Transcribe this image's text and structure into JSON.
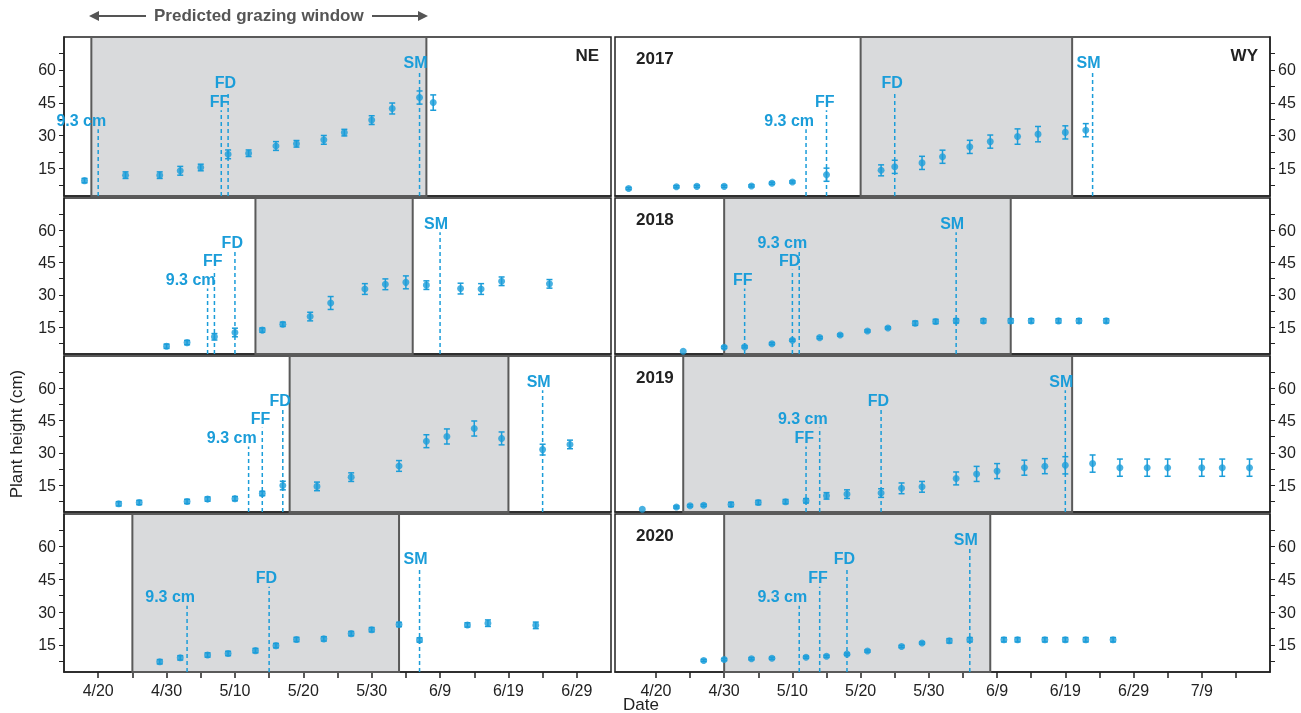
{
  "chart_data": [
    {
      "type": "scatter",
      "annotations": [
        "NE"
      ],
      "marker": "circle",
      "tick_labels": "y",
      "xlim": [
        "--04-15",
        "--07-04"
      ],
      "ylim": [
        2.5,
        75
      ],
      "yticks": [
        {
          "value": 7.5,
          "label": null
        },
        15,
        {
          "value": 22.5,
          "label": null
        },
        30,
        {
          "value": 37.5,
          "label": null
        },
        45,
        {
          "value": 52.5,
          "label": null
        },
        60,
        {
          "value": 67.5,
          "label": null
        }
      ],
      "x": [
        "--04-18",
        "--04-24",
        "--04-29",
        "--05-02",
        "--05-05",
        "--05-09",
        "--05-12",
        "--05-16",
        "--05-19",
        "--05-23",
        "--05-26",
        "--05-30",
        "--06-02",
        "--06-06",
        "--06-08"
      ],
      "series": [
        {
          "color": "#1b9dd9",
          "values": [
            9.5,
            12,
            12,
            14,
            15.5,
            21.5,
            22,
            25.3,
            26.3,
            28.1,
            31.4,
            37.1,
            42.4,
            47.4,
            45.1
          ],
          "errors": [
            1,
            1.5,
            1.5,
            2,
            1.5,
            2,
            1.5,
            2,
            1.5,
            2,
            1.5,
            2,
            2.5,
            3,
            3.5
          ]
        }
      ],
      "bands": [
        {
          "axis": "x",
          "from": "--04-19",
          "to": "--06-07",
          "label": "Predicted grazing window",
          "color": "#d9dadc"
        }
      ],
      "ref_lines": [
        {
          "axis": "x",
          "value": "--04-20",
          "label": "9.3 cm",
          "color": "#1b9dd9",
          "line_style": "dashed"
        },
        {
          "axis": "x",
          "value": "--05-08",
          "label": "FF",
          "color": "#1b9dd9",
          "line_style": "dashed"
        },
        {
          "axis": "x",
          "value": "--05-09",
          "label": "FD",
          "color": "#1b9dd9",
          "line_style": "dashed"
        },
        {
          "axis": "x",
          "value": "--06-06",
          "label": "SM",
          "color": "#1b9dd9",
          "line_style": "dashed"
        }
      ]
    },
    {
      "type": "scatter",
      "title": "2017",
      "annotations": [
        "WY"
      ],
      "marker": "circle",
      "tick_labels": "y",
      "xlim": [
        "--04-14",
        "--07-19"
      ],
      "y2lim": [
        2.5,
        75
      ],
      "y2ticks": [
        {
          "value": 7.5,
          "label": null
        },
        15,
        {
          "value": 22.5,
          "label": null
        },
        30,
        {
          "value": 37.5,
          "label": null
        },
        45,
        {
          "value": 52.5,
          "label": null
        },
        60,
        {
          "value": 67.5,
          "label": null
        }
      ],
      "x": [
        "--04-16",
        "--04-23",
        "--04-26",
        "--04-30",
        "--05-04",
        "--05-07",
        "--05-10",
        "--05-15",
        "--05-23",
        "--05-25",
        "--05-29",
        "--06-01",
        "--06-05",
        "--06-08",
        "--06-12",
        "--06-15",
        "--06-19",
        "--06-22"
      ],
      "series": [
        {
          "color": "#1b9dd9",
          "axis": "y2",
          "values": [
            5.9,
            6.7,
            6.9,
            6.9,
            7.1,
            8.3,
            8.9,
            12.2,
            14.2,
            15.8,
            17.6,
            20.4,
            24.9,
            27.3,
            29.6,
            30.7,
            31.5,
            32.5
          ],
          "errors": [
            0.5,
            0.5,
            0.5,
            0.5,
            0.5,
            0.5,
            0.5,
            3,
            2.5,
            3,
            3,
            3,
            3,
            3,
            3.5,
            3.5,
            3,
            3
          ]
        }
      ],
      "bands": [
        {
          "axis": "x",
          "from": "--05-20",
          "to": "--06-20",
          "color": "#d9dadc"
        }
      ],
      "ref_lines": [
        {
          "axis": "x",
          "value": "--05-12",
          "label": "9.3 cm",
          "color": "#1b9dd9",
          "line_style": "dashed"
        },
        {
          "axis": "x",
          "value": "--05-15",
          "label": "FF",
          "color": "#1b9dd9",
          "line_style": "dashed"
        },
        {
          "axis": "x",
          "value": "--05-25",
          "label": "FD",
          "color": "#1b9dd9",
          "line_style": "dashed"
        },
        {
          "axis": "x",
          "value": "--06-23",
          "label": "SM",
          "color": "#1b9dd9",
          "line_style": "dashed"
        }
      ]
    },
    {
      "type": "scatter",
      "marker": "circle",
      "tick_labels": "y",
      "xlim": [
        "--04-15",
        "--07-04"
      ],
      "ylim": [
        2.5,
        75
      ],
      "yticks": [
        {
          "value": 7.5,
          "label": null
        },
        15,
        {
          "value": 22.5,
          "label": null
        },
        30,
        {
          "value": 37.5,
          "label": null
        },
        45,
        {
          "value": 52.5,
          "label": null
        },
        60,
        {
          "value": 67.5,
          "label": null
        }
      ],
      "x": [
        "--04-30",
        "--05-03",
        "--05-07",
        "--05-10",
        "--05-14",
        "--05-17",
        "--05-21",
        "--05-24",
        "--05-29",
        "--06-01",
        "--06-04",
        "--06-07",
        "--06-12",
        "--06-15",
        "--06-18",
        "--06-25"
      ],
      "series": [
        {
          "color": "#1b9dd9",
          "values": [
            6.1,
            7.8,
            10.5,
            12.5,
            13.6,
            16.3,
            19.9,
            26.2,
            32.7,
            34.9,
            35.8,
            34.5,
            32.9,
            32.7,
            36.3,
            35.1
          ],
          "errors": [
            1,
            1,
            1.5,
            2,
            1,
            1,
            2,
            3,
            2.5,
            2.5,
            3,
            2,
            2.5,
            2.5,
            2,
            2
          ]
        }
      ],
      "bands": [
        {
          "axis": "x",
          "from": "--05-13",
          "to": "--06-05",
          "color": "#d9dadc"
        }
      ],
      "ref_lines": [
        {
          "axis": "x",
          "value": "--05-06",
          "label": "9.3 cm",
          "color": "#1b9dd9",
          "line_style": "dashed"
        },
        {
          "axis": "x",
          "value": "--05-07",
          "label": "FF",
          "color": "#1b9dd9",
          "line_style": "dashed"
        },
        {
          "axis": "x",
          "value": "--05-10",
          "label": "FD",
          "color": "#1b9dd9",
          "line_style": "dashed"
        },
        {
          "axis": "x",
          "value": "--06-09",
          "label": "SM",
          "color": "#1b9dd9",
          "line_style": "dashed"
        }
      ]
    },
    {
      "type": "scatter",
      "title": "2018",
      "marker": "circle",
      "tick_labels": "y",
      "xlim": [
        "--04-14",
        "--07-19"
      ],
      "y2lim": [
        2.5,
        75
      ],
      "y2ticks": [
        {
          "value": 7.5,
          "label": null
        },
        15,
        {
          "value": 22.5,
          "label": null
        },
        30,
        {
          "value": 37.5,
          "label": null
        },
        45,
        {
          "value": 52.5,
          "label": null
        },
        60,
        {
          "value": 67.5,
          "label": null
        }
      ],
      "x": [
        "--04-24",
        "--04-30",
        "--05-03",
        "--05-07",
        "--05-10",
        "--05-14",
        "--05-17",
        "--05-21",
        "--05-24",
        "--05-28",
        "--05-31",
        "--06-03",
        "--06-07",
        "--06-11",
        "--06-14",
        "--06-18",
        "--06-21",
        "--06-25"
      ],
      "series": [
        {
          "color": "#1b9dd9",
          "axis": "y2",
          "values": [
            3.8,
            5.6,
            5.8,
            7.3,
            8.9,
            10.1,
            11.3,
            13.2,
            14.6,
            16.8,
            17.6,
            17.9,
            17.9,
            17.9,
            17.9,
            17.9,
            17.9,
            17.9
          ],
          "errors": [
            null,
            0.5,
            0.5,
            0.5,
            0.5,
            0.5,
            0.5,
            0.5,
            0.5,
            1,
            1,
            1,
            1,
            1,
            1,
            1,
            1,
            1
          ]
        }
      ],
      "bands": [
        {
          "axis": "x",
          "from": "--04-30",
          "to": "--06-11",
          "color": "#d9dadc"
        }
      ],
      "ref_lines": [
        {
          "axis": "x",
          "value": "--05-03",
          "label": "FF",
          "color": "#1b9dd9",
          "line_style": "dashed"
        },
        {
          "axis": "x",
          "value": "--05-10",
          "label": "FD",
          "color": "#1b9dd9",
          "line_style": "dashed"
        },
        {
          "axis": "x",
          "value": "--05-11",
          "label": "9.3 cm",
          "color": "#1b9dd9",
          "line_style": "dashed"
        },
        {
          "axis": "x",
          "value": "--06-03",
          "label": "SM",
          "color": "#1b9dd9",
          "line_style": "dashed"
        }
      ]
    },
    {
      "type": "scatter",
      "ylabel": "Plant height (cm)",
      "marker": "circle",
      "tick_labels": "y",
      "xlim": [
        "--04-15",
        "--07-04"
      ],
      "ylim": [
        2.5,
        75
      ],
      "yticks": [
        {
          "value": 7.5,
          "label": null
        },
        15,
        {
          "value": 22.5,
          "label": null
        },
        30,
        {
          "value": 37.5,
          "label": null
        },
        45,
        {
          "value": 52.5,
          "label": null
        },
        60,
        {
          "value": 67.5,
          "label": null
        }
      ],
      "x": [
        "--04-23",
        "--04-26",
        "--05-03",
        "--05-06",
        "--05-10",
        "--05-14",
        "--05-17",
        "--05-22",
        "--05-27",
        "--06-03",
        "--06-07",
        "--06-10",
        "--06-14",
        "--06-18",
        "--06-24",
        "--06-28"
      ],
      "series": [
        {
          "color": "#1b9dd9",
          "values": [
            6.3,
            6.9,
            7.4,
            8.5,
            8.7,
            11.1,
            14.8,
            14.4,
            18.7,
            23.9,
            35.4,
            37.6,
            41.3,
            36.7,
            31.5,
            33.9
          ],
          "errors": [
            1,
            1,
            1,
            1,
            1,
            1,
            2,
            2,
            2,
            2.5,
            3,
            3.5,
            3.5,
            3,
            2.5,
            2
          ]
        }
      ],
      "bands": [
        {
          "axis": "x",
          "from": "--05-18",
          "to": "--06-19",
          "color": "#d9dadc"
        }
      ],
      "ref_lines": [
        {
          "axis": "x",
          "value": "--05-12",
          "label": "9.3 cm",
          "color": "#1b9dd9",
          "line_style": "dashed"
        },
        {
          "axis": "x",
          "value": "--05-14",
          "label": "FF",
          "color": "#1b9dd9",
          "line_style": "dashed"
        },
        {
          "axis": "x",
          "value": "--05-17",
          "label": "FD",
          "color": "#1b9dd9",
          "line_style": "dashed"
        },
        {
          "axis": "x",
          "value": "--06-24",
          "label": "SM",
          "color": "#1b9dd9",
          "line_style": "dashed"
        }
      ]
    },
    {
      "type": "scatter",
      "title": "2019",
      "marker": "circle",
      "tick_labels": "y",
      "xlim": [
        "--04-14",
        "--07-19"
      ],
      "y2lim": [
        2.5,
        75
      ],
      "y2ticks": [
        {
          "value": 7.5,
          "label": null
        },
        15,
        {
          "value": 22.5,
          "label": null
        },
        30,
        {
          "value": 37.5,
          "label": null
        },
        45,
        {
          "value": 52.5,
          "label": null
        },
        60,
        {
          "value": 67.5,
          "label": null
        }
      ],
      "x": [
        "--04-18",
        "--04-23",
        "--04-25",
        "--04-27",
        "--05-01",
        "--05-05",
        "--05-09",
        "--05-12",
        "--05-15",
        "--05-18",
        "--05-23",
        "--05-26",
        "--05-29",
        "--06-03",
        "--06-06",
        "--06-09",
        "--06-13",
        "--06-16",
        "--06-19",
        "--06-23",
        "--06-27",
        "--07-01",
        "--07-04",
        "--07-09",
        "--07-12",
        "--07-16"
      ],
      "series": [
        {
          "color": "#1b9dd9",
          "axis": "y2",
          "values": [
            3.8,
            4.8,
            5.4,
            5.6,
            6,
            6.9,
            7.3,
            7.7,
            10,
            10.8,
            11.3,
            13.5,
            14.2,
            18.1,
            20.2,
            21.5,
            23.1,
            23.8,
            24.2,
            25,
            23.1,
            23.1,
            23.1,
            23.1,
            23.1,
            23.1
          ],
          "errors": [
            null,
            0.5,
            0.5,
            0.5,
            1,
            1,
            1,
            1,
            1.5,
            2,
            2,
            2.5,
            2.5,
            3,
            3.5,
            3.5,
            3.5,
            3.5,
            4,
            4,
            4,
            4,
            4,
            4,
            4,
            4
          ]
        }
      ],
      "bands": [
        {
          "axis": "x",
          "from": "--04-24",
          "to": "--06-20",
          "color": "#d9dadc"
        }
      ],
      "ref_lines": [
        {
          "axis": "x",
          "value": "--05-12",
          "label": "FF",
          "color": "#1b9dd9",
          "line_style": "dashed"
        },
        {
          "axis": "x",
          "value": "--05-14",
          "label": "9.3 cm",
          "color": "#1b9dd9",
          "line_style": "dashed"
        },
        {
          "axis": "x",
          "value": "--05-23",
          "label": "FD",
          "color": "#1b9dd9",
          "line_style": "dashed"
        },
        {
          "axis": "x",
          "value": "--06-19",
          "label": "SM",
          "color": "#1b9dd9",
          "line_style": "dashed"
        }
      ]
    },
    {
      "type": "scatter",
      "marker": "circle",
      "xlim": [
        "--04-15",
        "--07-04"
      ],
      "ylim": [
        2.5,
        75
      ],
      "xticks": [
        {
          "value": "--04-20",
          "label": "4/20"
        },
        {
          "value": "--04-25",
          "label": null
        },
        {
          "value": "--04-30",
          "label": "4/30"
        },
        {
          "value": "--05-05",
          "label": null
        },
        {
          "value": "--05-10",
          "label": "5/10"
        },
        {
          "value": "--05-15",
          "label": null
        },
        {
          "value": "--05-20",
          "label": "5/20"
        },
        {
          "value": "--05-25",
          "label": null
        },
        {
          "value": "--05-30",
          "label": "5/30"
        },
        {
          "value": "--06-04",
          "label": null
        },
        {
          "value": "--06-09",
          "label": "6/9"
        },
        {
          "value": "--06-14",
          "label": null
        },
        {
          "value": "--06-19",
          "label": "6/19"
        },
        {
          "value": "--06-24",
          "label": null
        },
        {
          "value": "--06-29",
          "label": "6/29"
        }
      ],
      "yticks": [
        {
          "value": 7.5,
          "label": null
        },
        15,
        {
          "value": 22.5,
          "label": null
        },
        30,
        {
          "value": 37.5,
          "label": null
        },
        45,
        {
          "value": 52.5,
          "label": null
        },
        60,
        {
          "value": 67.5,
          "label": null
        }
      ],
      "x": [
        "--04-29",
        "--05-02",
        "--05-06",
        "--05-09",
        "--05-13",
        "--05-16",
        "--05-19",
        "--05-23",
        "--05-27",
        "--05-30",
        "--06-03",
        "--06-06",
        "--06-13",
        "--06-16",
        "--06-23"
      ],
      "series": [
        {
          "color": "#1b9dd9",
          "values": [
            7.2,
            9,
            10.3,
            11,
            12.3,
            14.6,
            17.4,
            17.7,
            20.1,
            21.9,
            24.3,
            17.2,
            24.1,
            24.9,
            23.9
          ],
          "errors": [
            1,
            1,
            1,
            1,
            1,
            1,
            1,
            1,
            1,
            1,
            1,
            1,
            1,
            1.5,
            1.5
          ]
        }
      ],
      "bands": [
        {
          "axis": "x",
          "from": "--04-25",
          "to": "--06-03",
          "color": "#d9dadc"
        }
      ],
      "ref_lines": [
        {
          "axis": "x",
          "value": "--05-03",
          "label": "9.3 cm",
          "color": "#1b9dd9",
          "line_style": "dashed"
        },
        {
          "axis": "x",
          "value": "--05-15",
          "label": "FD",
          "color": "#1b9dd9",
          "line_style": "dashed"
        },
        {
          "axis": "x",
          "value": "--06-06",
          "label": "SM",
          "color": "#1b9dd9",
          "line_style": "dashed"
        }
      ]
    },
    {
      "type": "scatter",
      "title": "2020",
      "xlabel": "Date",
      "marker": "circle",
      "xlim": [
        "--04-14",
        "--07-19"
      ],
      "y2lim": [
        2.5,
        75
      ],
      "xticks": [
        {
          "value": "--04-20",
          "label": "4/20"
        },
        {
          "value": "--04-25",
          "label": null
        },
        {
          "value": "--04-30",
          "label": "4/30"
        },
        {
          "value": "--05-05",
          "label": null
        },
        {
          "value": "--05-10",
          "label": "5/10"
        },
        {
          "value": "--05-15",
          "label": null
        },
        {
          "value": "--05-20",
          "label": "5/20"
        },
        {
          "value": "--05-25",
          "label": null
        },
        {
          "value": "--05-30",
          "label": "5/30"
        },
        {
          "value": "--06-04",
          "label": null
        },
        {
          "value": "--06-09",
          "label": "6/9"
        },
        {
          "value": "--06-14",
          "label": null
        },
        {
          "value": "--06-19",
          "label": "6/19"
        },
        {
          "value": "--06-24",
          "label": null
        },
        {
          "value": "--06-29",
          "label": "6/29"
        },
        {
          "value": "--07-04",
          "label": null
        },
        {
          "value": "--07-09",
          "label": "7/9"
        },
        {
          "value": "--07-14",
          "label": null
        }
      ],
      "y2ticks": [
        {
          "value": 7.5,
          "label": null
        },
        15,
        {
          "value": 22.5,
          "label": null
        },
        30,
        {
          "value": 37.5,
          "label": null
        },
        45,
        {
          "value": 52.5,
          "label": null
        },
        60,
        {
          "value": 67.5,
          "label": null
        }
      ],
      "x": [
        "--04-27",
        "--04-30",
        "--05-04",
        "--05-07",
        "--05-12",
        "--05-15",
        "--05-18",
        "--05-21",
        "--05-26",
        "--05-29",
        "--06-02",
        "--06-05",
        "--06-10",
        "--06-12",
        "--06-16",
        "--06-19",
        "--06-22",
        "--06-26"
      ],
      "series": [
        {
          "color": "#1b9dd9",
          "axis": "y2",
          "values": [
            7.8,
            8.2,
            8.6,
            8.8,
            9.3,
            9.7,
            10.7,
            12.1,
            14.2,
            15.8,
            16.8,
            17.3,
            17.3,
            17.3,
            17.3,
            17.3,
            17.3,
            17.3
          ],
          "errors": [
            0.5,
            0.5,
            0.5,
            0.5,
            0.5,
            0.5,
            0.5,
            0.5,
            0.5,
            0.5,
            1,
            1,
            1,
            1,
            1,
            1,
            1,
            1
          ]
        }
      ],
      "bands": [
        {
          "axis": "x",
          "from": "--04-30",
          "to": "--06-08",
          "color": "#d9dadc"
        }
      ],
      "ref_lines": [
        {
          "axis": "x",
          "value": "--05-11",
          "label": "9.3 cm",
          "color": "#1b9dd9",
          "line_style": "dashed"
        },
        {
          "axis": "x",
          "value": "--05-14",
          "label": "FF",
          "color": "#1b9dd9",
          "line_style": "dashed"
        },
        {
          "axis": "x",
          "value": "--05-18",
          "label": "FD",
          "color": "#1b9dd9",
          "line_style": "dashed"
        },
        {
          "axis": "x",
          "value": "--06-05",
          "label": "SM",
          "color": "#1b9dd9",
          "line_style": "dashed"
        }
      ]
    }
  ]
}
